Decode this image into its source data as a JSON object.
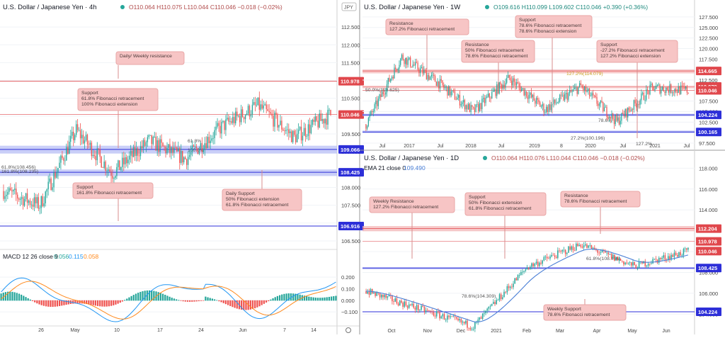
{
  "theme": {
    "up": "#26a69a",
    "down": "#ef5350",
    "ema": "#4a7fd6",
    "macd_line": "#2196f3",
    "signal_line": "#ff8a1e",
    "res": "#e0474c",
    "sup": "#2d2fd8",
    "zone_red": "#f4b7b7",
    "zone_blue": "#b8bff5",
    "callout_bg": "#f7c5c5",
    "callout_border": "#e8a6a6"
  },
  "panels": {
    "h4": {
      "header": {
        "title": "U.S. Dollar / Japanese Yen · 4h",
        "ohlc": "O110.064  H110.075  L110.044  C110.046  −0.018 (−0.02%)",
        "currency_tag": "JPY"
      },
      "price_axis": {
        "ticks": [
          "112.500",
          "112.000",
          "111.500",
          "111.000",
          "110.500",
          "110.000",
          "109.500",
          "109.000",
          "108.500",
          "108.000",
          "107.500",
          "107.000",
          "106.500"
        ]
      },
      "price_levels": [
        {
          "value": "110.978",
          "kind": "res"
        },
        {
          "value": "110.046",
          "kind": "res"
        },
        {
          "value": "109.066",
          "kind": "sup"
        },
        {
          "value": "108.425",
          "kind": "sup"
        },
        {
          "value": "106.916",
          "kind": "sup"
        }
      ],
      "fib_labels": [
        "61.8%",
        "100.0%",
        "61.8%(108.456)",
        "161.8%(108.235)"
      ],
      "callouts": [
        {
          "text": "Daily/ Weekly resistance"
        },
        {
          "text": "Support\n61.8% Fibonacci retracement\n100% Fibonacci extension"
        },
        {
          "text": "Support\n161.8% Fibonacci retracement"
        },
        {
          "text": "Daily Support\n50% Fibonacci extension\n61.8% Fibonacci retracement"
        }
      ],
      "x_ticks": [
        "26",
        "May",
        "10",
        "17",
        "24",
        "Jun",
        "7",
        "14"
      ],
      "macd": {
        "label": "MACD 12 26 close 9",
        "v1": "0.056",
        "v2": "0.115",
        "v3": "0.058",
        "axis": [
          "0.200",
          "0.100",
          "0.000",
          "−0.100"
        ]
      }
    },
    "w1": {
      "header": {
        "title": "U.S. Dollar / Japanese Yen · 1W",
        "ohlc": "O109.616  H110.099  L109.602  C110.046  +0.390 (+0.36%)"
      },
      "price_axis": {
        "ticks": [
          "127.500",
          "125.000",
          "122.500",
          "120.000",
          "117.500",
          "115.000",
          "112.500",
          "110.000",
          "107.500",
          "105.000",
          "102.500",
          "100.000",
          "97.500"
        ]
      },
      "price_levels": [
        {
          "value": "114.665",
          "kind": "res"
        },
        {
          "value": "110.978",
          "kind": "res"
        },
        {
          "value": "110.046",
          "kind": "res"
        },
        {
          "value": "104.224",
          "kind": "sup"
        },
        {
          "value": "100.165",
          "kind": "sup"
        }
      ],
      "fib_labels": [
        "127.2%(114.079)",
        "50.0%(110.625)",
        "78.6%",
        "27.2%(100.196)",
        "127.2%"
      ],
      "callouts": [
        {
          "text": "Resistance\n127.2% Fibonacci retracement"
        },
        {
          "text": "Resistance\n50% Fibonacci retracement\n78.6% Fibonacci retracement"
        },
        {
          "text": "Support\n78.6% Fibonacci retracement\n78.6% Fibonacci extension"
        },
        {
          "text": "Support\n-27.2% Fibonacci retracement\n127.2% Fibonacci extension"
        }
      ],
      "x_ticks": [
        "Jul",
        "2017",
        "Jul",
        "2018",
        "Jul",
        "2019",
        "8",
        "2020",
        "Jul",
        "2021",
        "Jul"
      ]
    },
    "d1": {
      "header": {
        "title": "U.S. Dollar / Japanese Yen · 1D",
        "ohlc": "O110.064  H110.076  L110.044  C110.046  −0.018 (−0.02%)",
        "ema": "EMA 21 close 0",
        "ema_val": "109.490"
      },
      "price_axis": {
        "ticks": [
          "118.000",
          "116.000",
          "114.000",
          "112.000",
          "110.000",
          "108.000",
          "106.000",
          "104.000"
        ]
      },
      "price_levels": [
        {
          "value": "112.204",
          "kind": "res"
        },
        {
          "value": "110.978",
          "kind": "res"
        },
        {
          "value": "110.046",
          "kind": "res"
        },
        {
          "value": "108.425",
          "kind": "sup"
        },
        {
          "value": "104.224",
          "kind": "sup"
        }
      ],
      "fib_labels": [
        "61.8%(108.456)",
        "78.6%(104.309)"
      ],
      "callouts": [
        {
          "text": "Weekly Resistance\n127.2% Fibonacci retracement"
        },
        {
          "text": "Support\n50% Fibonacci extension\n61.8% Fibonacci retracement"
        },
        {
          "text": "Resistance\n78.6% Fibonacci retracement"
        },
        {
          "text": "Weekly Support\n78.6% Fibonacci retracement"
        }
      ],
      "x_ticks": [
        "Oct",
        "Nov",
        "Dec",
        "2021",
        "Feb",
        "Mar",
        "Apr",
        "May",
        "Jun"
      ]
    }
  },
  "chart_data": [
    {
      "type": "candlestick",
      "title": "U.S. Dollar / Japanese Yen · 4h",
      "ylim": [
        106.3,
        112.9
      ],
      "key_points": [
        {
          "x": "Apr 19",
          "y": 107.9
        },
        {
          "x": "Apr 23",
          "y": 107.5
        },
        {
          "x": "May 3",
          "y": 109.6
        },
        {
          "x": "May 10",
          "y": 108.4
        },
        {
          "x": "May 17",
          "y": 109.3
        },
        {
          "x": "May 24",
          "y": 108.8
        },
        {
          "x": "Jun 1",
          "y": 109.7
        },
        {
          "x": "Jun 4",
          "y": 110.3
        },
        {
          "x": "Jun 7",
          "y": 109.4
        },
        {
          "x": "Jun 15",
          "y": 110.05
        }
      ],
      "levels": [
        110.978,
        110.046,
        109.066,
        108.425,
        106.916
      ]
    },
    {
      "type": "candlestick",
      "title": "U.S. Dollar / Japanese Yen · 1W",
      "ylim": [
        97.0,
        128.5
      ],
      "key_points": [
        {
          "x": "2016-07",
          "y": 102.0
        },
        {
          "x": "2016-12",
          "y": 118.0
        },
        {
          "x": "2017-07",
          "y": 112.0
        },
        {
          "x": "2018-03",
          "y": 105.0
        },
        {
          "x": "2018-10",
          "y": 113.0
        },
        {
          "x": "2019-08",
          "y": 105.5
        },
        {
          "x": "2020-03",
          "y": 111.0
        },
        {
          "x": "2021-01",
          "y": 102.6
        },
        {
          "x": "2021-03",
          "y": 110.7
        },
        {
          "x": "2021-06",
          "y": 110.0
        }
      ],
      "levels": [
        114.665,
        110.978,
        110.046,
        104.224,
        100.165
      ]
    },
    {
      "type": "candlestick",
      "title": "U.S. Dollar / Japanese Yen · 1D",
      "ylim": [
        103.0,
        118.5
      ],
      "key_points": [
        {
          "x": "Sep",
          "y": 106.2
        },
        {
          "x": "Nov",
          "y": 104.5
        },
        {
          "x": "Jan",
          "y": 102.8
        },
        {
          "x": "Mar",
          "y": 108.5
        },
        {
          "x": "Apr",
          "y": 110.7
        },
        {
          "x": "May",
          "y": 108.6
        },
        {
          "x": "Jun",
          "y": 110.05
        }
      ],
      "levels": [
        112.204,
        110.978,
        110.046,
        108.425,
        104.224
      ],
      "ema21_last": 109.49
    }
  ]
}
